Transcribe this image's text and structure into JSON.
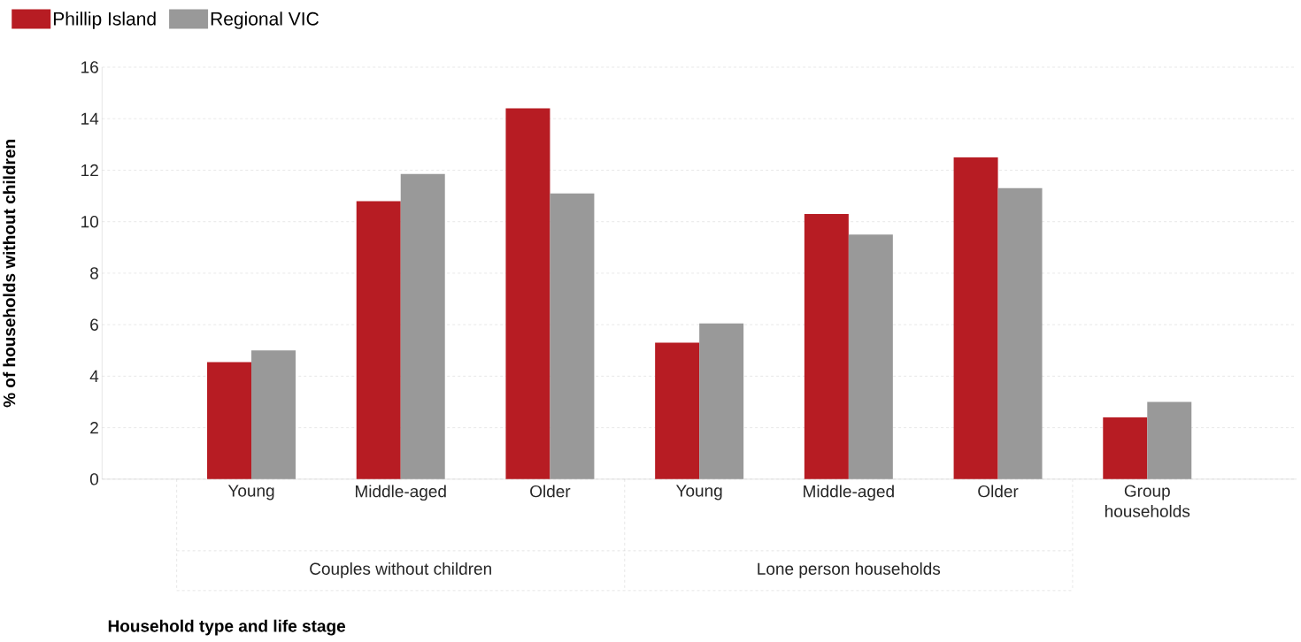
{
  "chart_data": {
    "type": "bar",
    "ylabel": "% of households without children",
    "categories": [
      "Young",
      "Middle-aged",
      "Older",
      "Young",
      "Middle-aged",
      "Older",
      "Group households"
    ],
    "series": [
      {
        "name": "Phillip Island",
        "color": "#b71c23",
        "values": [
          4.55,
          10.8,
          14.4,
          5.3,
          10.3,
          12.5,
          2.4
        ]
      },
      {
        "name": "Regional VIC",
        "color": "#999999",
        "values": [
          5.0,
          11.85,
          11.1,
          6.05,
          9.5,
          11.3,
          3.0
        ]
      }
    ],
    "annotations": [
      "Household type and life stage",
      "Couples without children",
      "Lone person households"
    ],
    "ylim": [
      0,
      16
    ],
    "yticks": [
      0,
      2,
      4,
      6,
      8,
      10,
      12,
      14,
      16
    ],
    "grid": "y",
    "legend": "top left"
  }
}
